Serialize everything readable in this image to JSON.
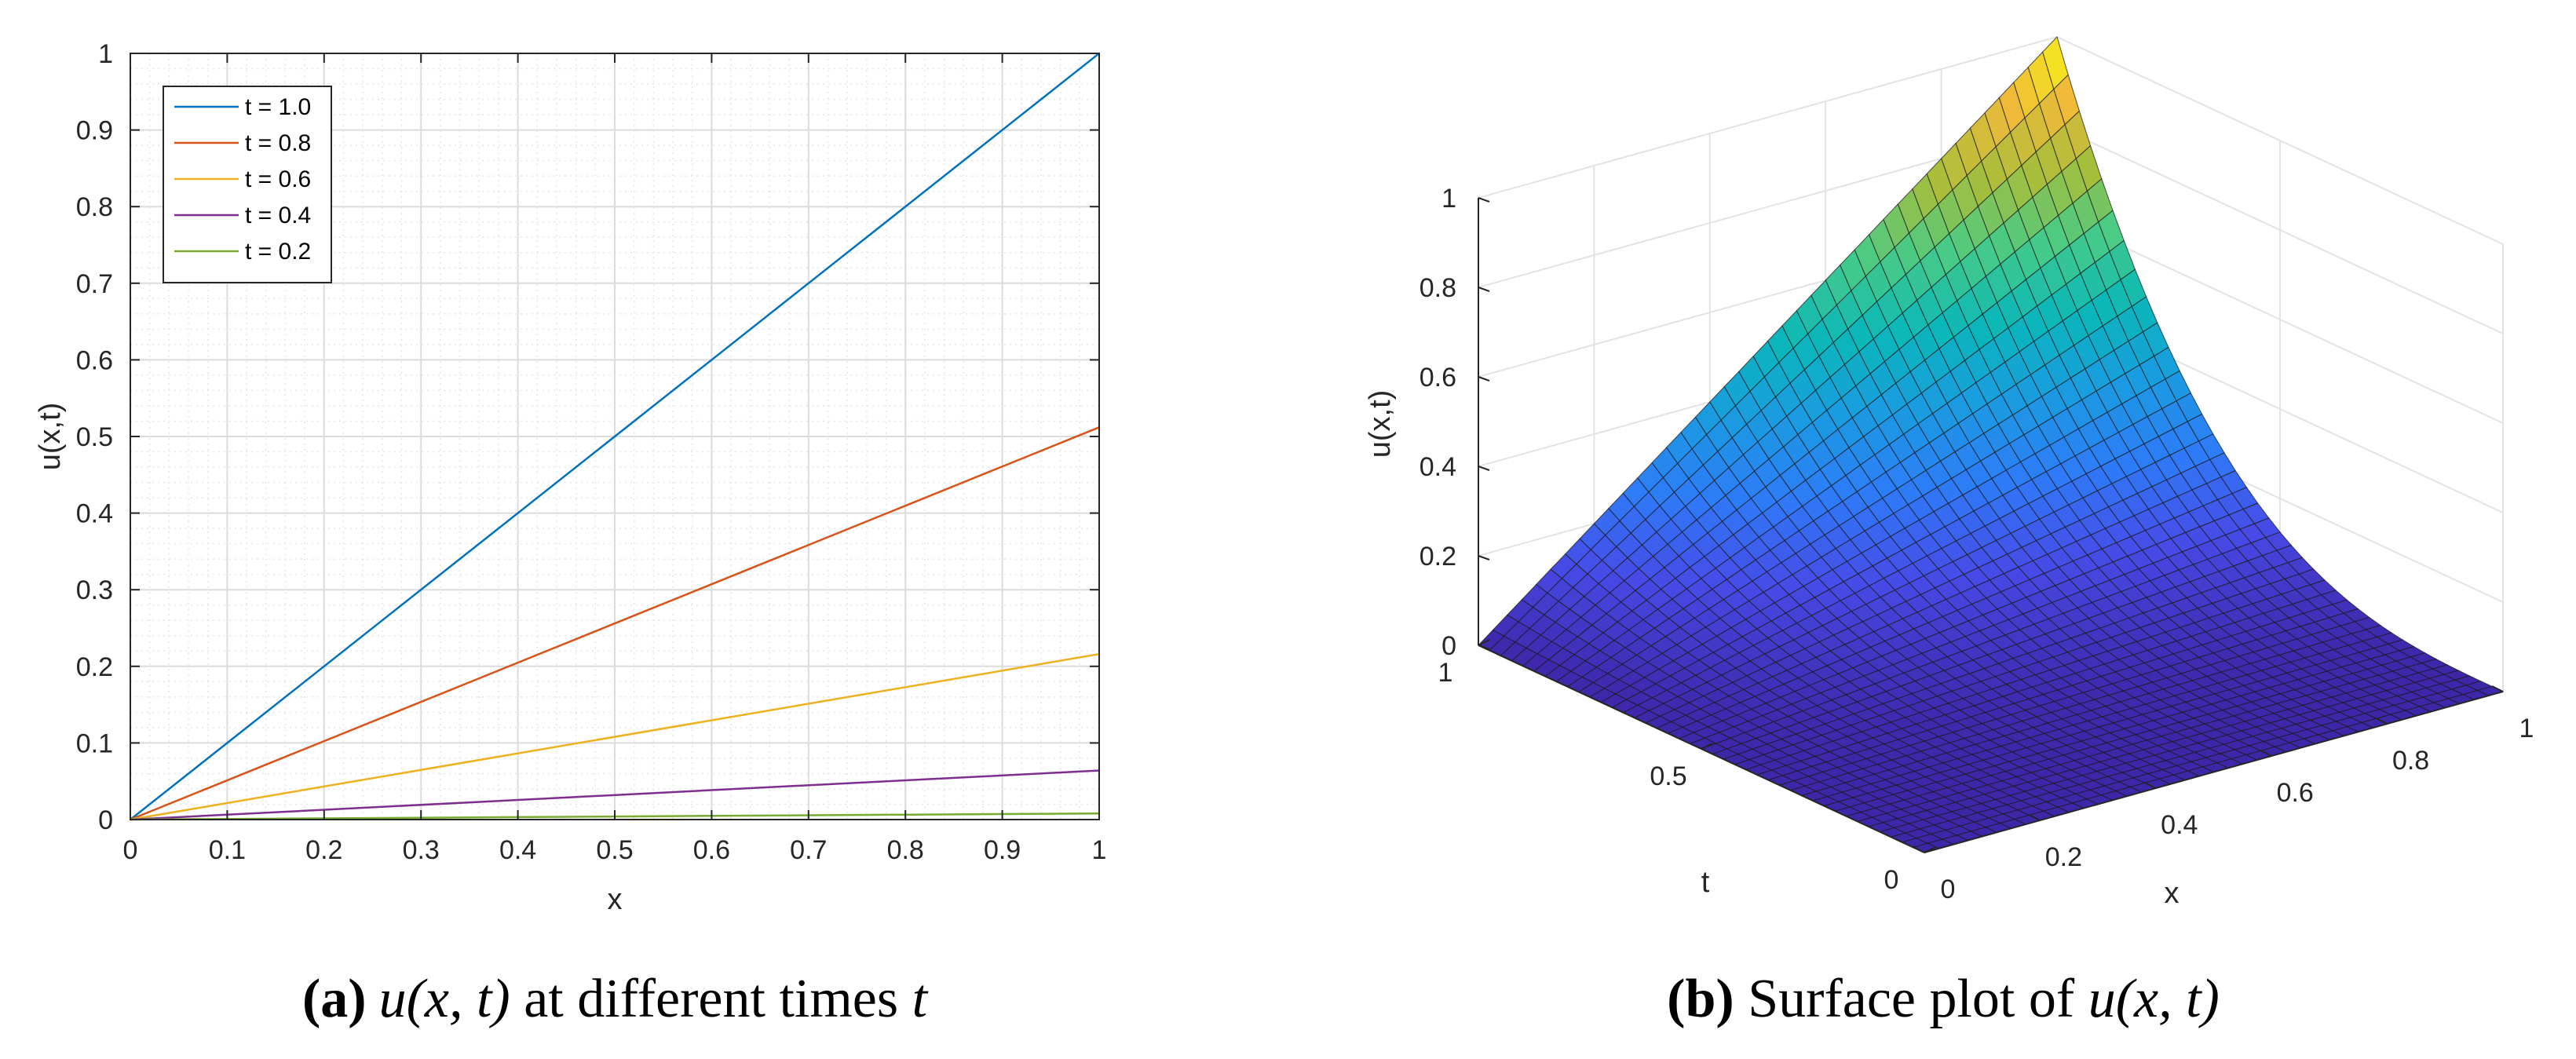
{
  "chart_data": [
    {
      "type": "line",
      "xlabel": "x",
      "ylabel": "u(x,t)",
      "xlim": [
        0,
        1
      ],
      "ylim": [
        0,
        1
      ],
      "grid": true,
      "minor_grid": true,
      "xticks": [
        "0",
        "0.1",
        "0.2",
        "0.3",
        "0.4",
        "0.5",
        "0.6",
        "0.7",
        "0.8",
        "0.9",
        "1"
      ],
      "yticks": [
        "0",
        "0.1",
        "0.2",
        "0.3",
        "0.4",
        "0.5",
        "0.6",
        "0.7",
        "0.8",
        "0.9",
        "1"
      ],
      "legend_position": "top-left",
      "series": [
        {
          "name": "t = 1.0",
          "color": "#0072BD",
          "x": [
            0,
            1
          ],
          "y": [
            0,
            1.0
          ]
        },
        {
          "name": "t = 0.8",
          "color": "#D95319",
          "x": [
            0,
            1
          ],
          "y": [
            0,
            0.512
          ]
        },
        {
          "name": "t = 0.6",
          "color": "#EDB120",
          "x": [
            0,
            1
          ],
          "y": [
            0,
            0.216
          ]
        },
        {
          "name": "t = 0.4",
          "color": "#7E2F8E",
          "x": [
            0,
            1
          ],
          "y": [
            0,
            0.064
          ]
        },
        {
          "name": "t = 0.2",
          "color": "#77AC30",
          "x": [
            0,
            1
          ],
          "y": [
            0,
            0.008
          ]
        }
      ],
      "caption": {
        "label": "(a)",
        "math": "u(x, t)",
        "text": " at different times ",
        "var": "t"
      }
    },
    {
      "type": "surface",
      "function": "u = x * t^3",
      "xlabel": "x",
      "ylabel": "t",
      "zlabel": "u(x,t)",
      "xlim": [
        0,
        1
      ],
      "ylim": [
        0,
        1
      ],
      "zlim": [
        0,
        1
      ],
      "grid_n": 40,
      "colormap": "parula",
      "xticks": [
        "0",
        "0.2",
        "0.4",
        "0.6",
        "0.8",
        "1"
      ],
      "yticks": [
        "0",
        "0.5",
        "1"
      ],
      "zticks": [
        "0",
        "0.2",
        "0.4",
        "0.6",
        "0.8",
        "1"
      ],
      "caption": {
        "label": "(b)",
        "text": " Surface plot of ",
        "math": "u(x, t)"
      }
    }
  ]
}
